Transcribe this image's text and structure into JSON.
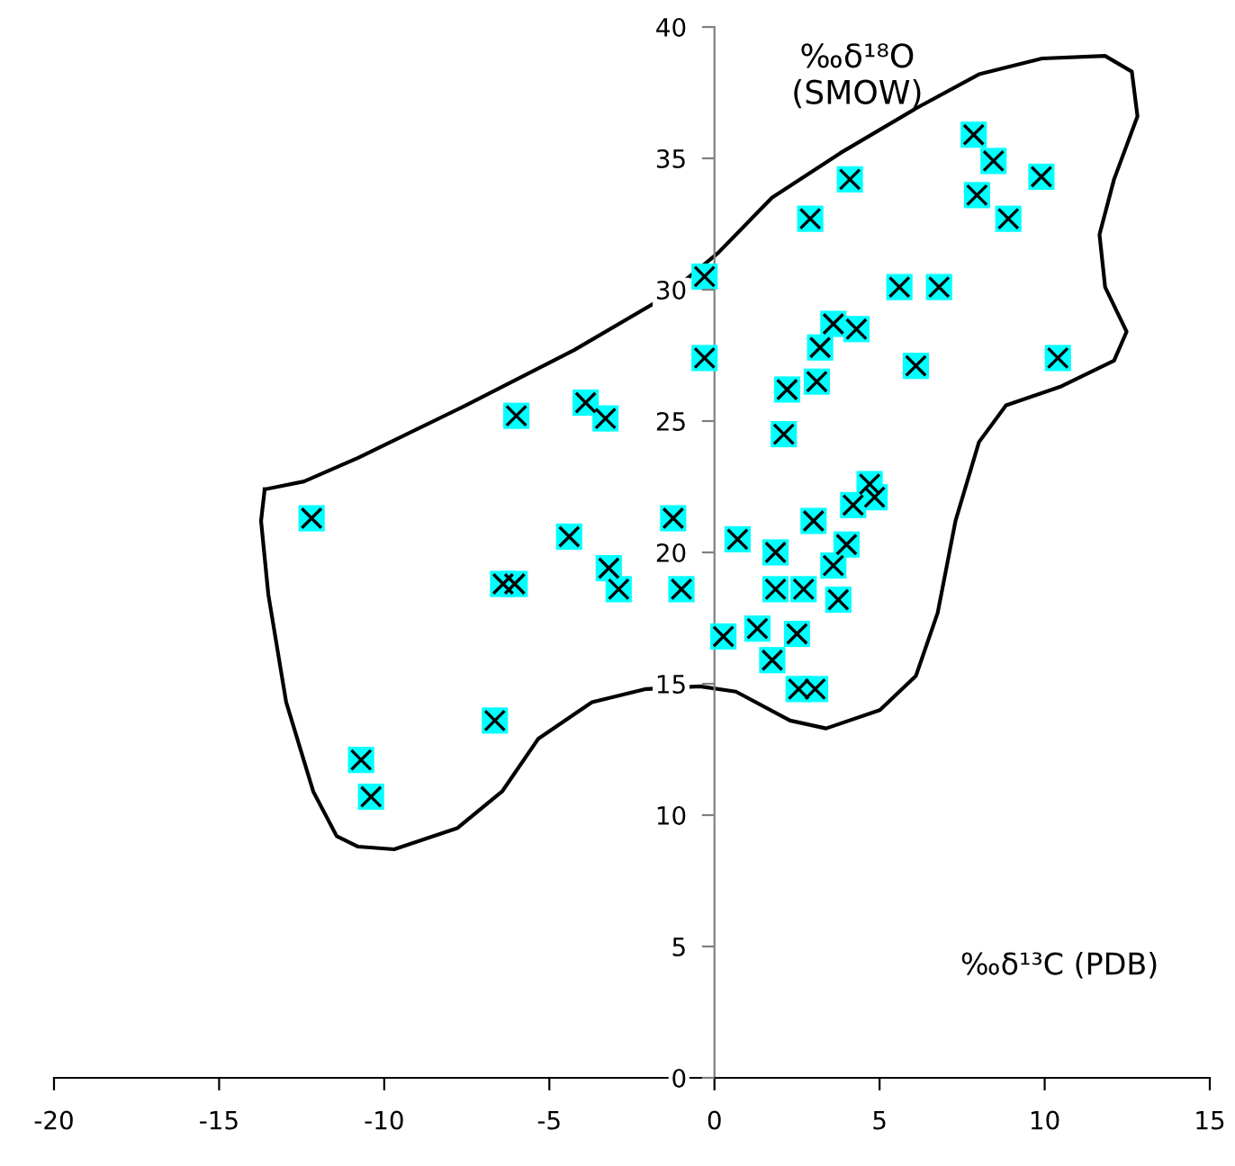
{
  "chart_data": {
    "type": "scatter",
    "xlabel": "‰δ¹³C (PDB)",
    "ylabel": "‰δ¹⁸O\n(SMOW)",
    "xlim": [
      -20,
      15
    ],
    "ylim": [
      0,
      40
    ],
    "xticks": [
      -20,
      -15,
      -10,
      -5,
      0,
      5,
      10,
      15
    ],
    "yticks": [
      0,
      5,
      10,
      15,
      20,
      25,
      30,
      35,
      40
    ],
    "grid": false,
    "legend": false,
    "marker": "square",
    "series": [
      {
        "color": "#00ffff",
        "x": [
          -12.2,
          -10.7,
          -10.4,
          -6.65,
          -6.4,
          -6.05,
          -6.0,
          -4.4,
          -3.9,
          -3.3,
          -3.2,
          -2.9,
          -1.25,
          -1.0,
          -0.3,
          -0.3,
          0.27,
          0.7,
          1.3,
          1.75,
          1.85,
          1.85,
          2.5,
          2.55,
          2.7,
          3.05,
          3.0,
          3.6,
          3.75,
          4.0,
          4.2,
          4.7,
          4.85,
          2.1,
          2.2,
          3.1,
          3.2,
          3.6,
          4.3,
          2.9,
          4.1,
          5.6,
          6.8,
          6.1,
          7.85,
          8.45,
          7.95,
          8.9,
          9.9,
          10.4
        ],
        "values": [
          21.3,
          12.1,
          10.7,
          13.6,
          18.8,
          18.8,
          25.2,
          20.6,
          25.7,
          25.1,
          19.4,
          18.6,
          21.3,
          18.6,
          30.5,
          27.4,
          16.8,
          20.5,
          17.1,
          15.9,
          20.0,
          18.6,
          16.9,
          14.8,
          18.6,
          14.8,
          21.2,
          19.5,
          18.2,
          20.3,
          21.8,
          22.6,
          22.1,
          24.5,
          26.2,
          26.5,
          27.8,
          28.7,
          28.5,
          32.7,
          34.2,
          30.1,
          30.1,
          27.1,
          35.9,
          34.9,
          33.6,
          32.7,
          34.3,
          27.4
        ]
      }
    ]
  }
}
